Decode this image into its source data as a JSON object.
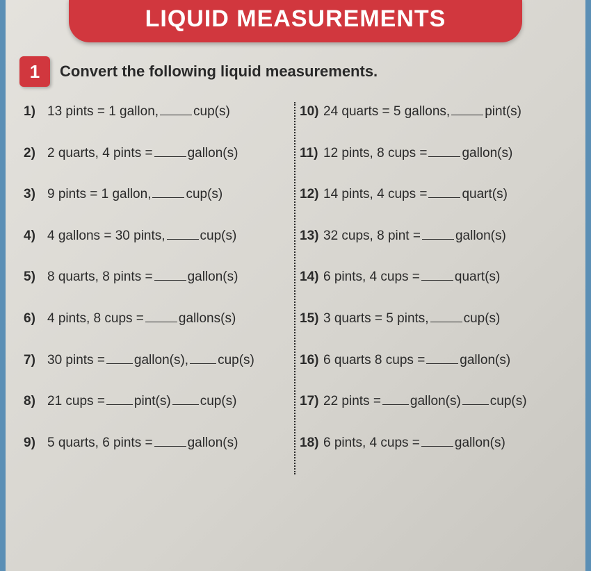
{
  "header": {
    "title": "LIQUID MEASUREMENTS",
    "banner_bg": "#d1373e",
    "banner_fg": "#ffffff"
  },
  "section": {
    "number": "1",
    "instruction": "Convert the following liquid measurements."
  },
  "left": [
    {
      "n": "1)",
      "pre": "13 pints = 1 gallon,",
      "unit": "cup(s)"
    },
    {
      "n": "2)",
      "pre": "2 quarts, 4 pints =",
      "unit": "gallon(s)"
    },
    {
      "n": "3)",
      "pre": "9 pints = 1 gallon,",
      "unit": "cup(s)"
    },
    {
      "n": "4)",
      "pre": "4 gallons = 30 pints,",
      "unit": "cup(s)"
    },
    {
      "n": "5)",
      "pre": "8 quarts, 8 pints =",
      "unit": "gallon(s)"
    },
    {
      "n": "6)",
      "pre": "4 pints, 8 cups =",
      "unit": "gallons(s)"
    },
    {
      "n": "7)",
      "pre": "30 pints =",
      "unit1": "gallon(s),",
      "unit2": "cup(s)"
    },
    {
      "n": "8)",
      "pre": "21 cups =",
      "unit1": "pint(s)",
      "unit2": "cup(s)"
    },
    {
      "n": "9)",
      "pre": "5 quarts, 6 pints =",
      "unit": "gallon(s)"
    }
  ],
  "right": [
    {
      "n": "10)",
      "pre": "24 quarts = 5 gallons,",
      "unit": "pint(s)"
    },
    {
      "n": "11)",
      "pre": "12 pints, 8 cups =",
      "unit": "gallon(s)"
    },
    {
      "n": "12)",
      "pre": "14 pints, 4 cups =",
      "unit": "quart(s)"
    },
    {
      "n": "13)",
      "pre": "32 cups, 8 pint =",
      "unit": "gallon(s)"
    },
    {
      "n": "14)",
      "pre": "6 pints, 4 cups =",
      "unit": "quart(s)"
    },
    {
      "n": "15)",
      "pre": "3 quarts = 5 pints,",
      "unit": "cup(s)"
    },
    {
      "n": "16)",
      "pre": "6 quarts 8 cups =",
      "unit": "gallon(s)"
    },
    {
      "n": "17)",
      "pre": "22 pints =",
      "unit1": "gallon(s)",
      "unit2": "cup(s)"
    },
    {
      "n": "18)",
      "pre": "6 pints, 4 cups =",
      "unit": "gallon(s)"
    }
  ],
  "style": {
    "page_bg_gradient": [
      "#e4e2dd",
      "#d6d4ce",
      "#c8c6c0"
    ],
    "side_border": "#5b8fb5",
    "text_color": "#2a2a2a",
    "body_fontsize": 19,
    "header_fontsize": 34,
    "instruction_fontsize": 22
  }
}
